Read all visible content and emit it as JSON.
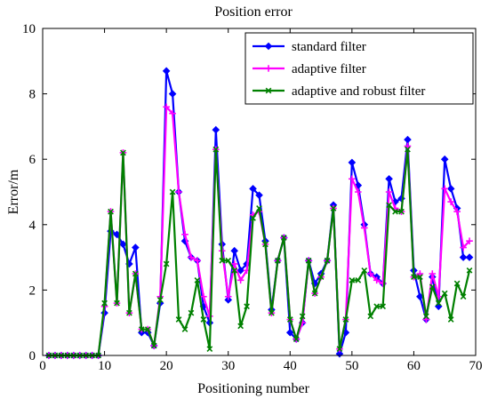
{
  "chart_data": {
    "type": "line",
    "title": "Position error",
    "xlabel": "Positioning number",
    "ylabel": "Error/m",
    "xlim": [
      0,
      70
    ],
    "ylim": [
      0,
      10
    ],
    "xticks": [
      0,
      10,
      20,
      30,
      40,
      50,
      60,
      70
    ],
    "yticks": [
      0,
      2,
      4,
      6,
      8,
      10
    ],
    "grid": false,
    "legend_position": "top-right",
    "x": [
      1,
      2,
      3,
      4,
      5,
      6,
      7,
      8,
      9,
      10,
      11,
      12,
      13,
      14,
      15,
      16,
      17,
      18,
      19,
      20,
      21,
      22,
      23,
      24,
      25,
      26,
      27,
      28,
      29,
      30,
      31,
      32,
      33,
      34,
      35,
      36,
      37,
      38,
      39,
      40,
      41,
      42,
      43,
      44,
      45,
      46,
      47,
      48,
      49,
      50,
      51,
      52,
      53,
      54,
      55,
      56,
      57,
      58,
      59,
      60,
      61,
      62,
      63,
      64,
      65,
      66,
      67,
      68,
      69
    ],
    "series": [
      {
        "name": "standard filter",
        "color": "#0000ff",
        "marker": "diamond",
        "values": [
          0,
          0,
          0,
          0,
          0,
          0,
          0,
          0,
          0,
          1.3,
          3.8,
          3.7,
          3.4,
          2.8,
          3.3,
          0.7,
          0.7,
          0.3,
          1.6,
          8.7,
          8.0,
          5.0,
          3.5,
          3.0,
          2.9,
          1.5,
          1.0,
          6.9,
          3.4,
          1.7,
          3.2,
          2.6,
          2.8,
          5.1,
          4.9,
          3.5,
          1.4,
          2.9,
          3.6,
          0.7,
          0.5,
          1.0,
          2.9,
          2.2,
          2.5,
          2.9,
          4.6,
          0.05,
          0.7,
          5.9,
          5.2,
          4.0,
          2.5,
          2.4,
          2.2,
          5.4,
          4.7,
          4.8,
          6.6,
          2.6,
          1.8,
          1.1,
          2.4,
          1.5,
          6.0,
          5.1,
          4.5,
          3.0,
          3.0
        ]
      },
      {
        "name": "adaptive filter",
        "color": "#ff00ff",
        "marker": "plus",
        "values": [
          0,
          0,
          0,
          0,
          0,
          0,
          0,
          0,
          0,
          1.5,
          4.4,
          1.6,
          6.2,
          1.3,
          2.5,
          0.8,
          0.8,
          0.3,
          1.8,
          7.6,
          7.4,
          5.0,
          3.7,
          3.0,
          2.9,
          1.8,
          1.2,
          6.3,
          3.2,
          1.8,
          2.8,
          2.3,
          2.6,
          4.3,
          4.4,
          3.4,
          1.3,
          2.9,
          3.6,
          1.1,
          0.5,
          1.0,
          2.9,
          1.9,
          2.4,
          2.9,
          4.5,
          0.2,
          1.1,
          5.4,
          5.0,
          3.9,
          2.5,
          2.3,
          2.2,
          5.0,
          4.5,
          4.4,
          6.4,
          2.4,
          2.5,
          1.1,
          2.5,
          1.8,
          5.1,
          4.7,
          4.4,
          3.3,
          3.5
        ]
      },
      {
        "name": "adaptive and robust filter",
        "color": "#008000",
        "marker": "x",
        "values": [
          0,
          0,
          0,
          0,
          0,
          0,
          0,
          0,
          0,
          1.6,
          4.4,
          1.6,
          6.2,
          1.3,
          2.5,
          0.8,
          0.8,
          0.3,
          1.7,
          2.8,
          5.0,
          1.1,
          0.8,
          1.3,
          2.3,
          1.1,
          0.2,
          6.3,
          2.9,
          2.9,
          2.6,
          0.9,
          1.5,
          4.2,
          4.5,
          3.4,
          1.3,
          2.9,
          3.6,
          1.1,
          0.5,
          1.2,
          2.9,
          1.9,
          2.4,
          2.9,
          4.5,
          0.2,
          1.1,
          2.3,
          2.3,
          2.6,
          1.2,
          1.5,
          1.5,
          4.6,
          4.4,
          4.4,
          6.3,
          2.4,
          2.4,
          1.2,
          2.1,
          1.6,
          1.9,
          1.1,
          2.2,
          1.8,
          2.6
        ]
      }
    ]
  }
}
